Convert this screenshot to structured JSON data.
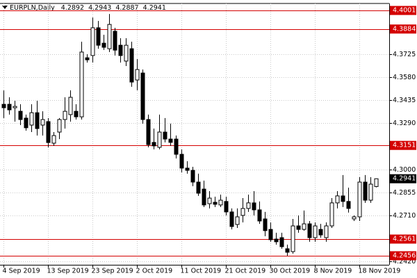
{
  "chart_data": {
    "type": "candlestick",
    "title": "EURPLN,Daily",
    "categories": [
      "4 Sep 2019",
      null,
      null,
      null,
      null,
      null,
      null,
      null,
      "13 Sep 2019",
      null,
      null,
      null,
      null,
      null,
      null,
      null,
      "23 Sep 2019",
      null,
      null,
      null,
      null,
      null,
      null,
      null,
      "2 Oct 2019",
      null,
      null,
      null,
      null,
      null,
      null,
      null,
      "11 Oct 2019",
      null,
      null,
      null,
      null,
      null,
      null,
      null,
      "21 Oct 2019",
      null,
      null,
      null,
      null,
      null,
      null,
      null,
      "30 Oct 2019",
      null,
      null,
      null,
      null,
      null,
      null,
      null,
      "8 Nov 2019",
      null,
      null,
      null,
      null,
      null,
      null,
      null,
      "18 Nov 2019",
      null,
      null,
      null
    ],
    "open": [
      4.341,
      4.341,
      4.3388,
      4.3366,
      4.3323,
      4.3279,
      4.3357,
      4.3279,
      4.3301,
      4.3165,
      4.3235,
      4.3314,
      4.3345,
      4.3366,
      4.3331,
      4.3703,
      4.3717,
      4.3892,
      4.3795,
      4.376,
      4.387,
      4.3782,
      4.3682,
      4.376,
      4.3563,
      4.3607,
      4.3314,
      4.317,
      4.3139,
      4.3235,
      4.3191,
      4.3191,
      4.3095,
      4.3008,
      4.2994,
      4.292,
      4.2876,
      4.2784,
      4.2793,
      4.2776,
      4.2798,
      4.2732,
      4.2653,
      4.271,
      4.2754,
      4.2789,
      4.2745,
      4.2688,
      4.2622,
      4.2561,
      4.257,
      4.25,
      4.2482,
      4.2644,
      4.2622,
      4.2657,
      4.257,
      4.2622,
      4.257,
      4.2644,
      4.2789,
      4.2833,
      4.2798,
      4.2688,
      4.2701,
      4.292,
      4.2806,
      4.2892
    ],
    "high": [
      4.3498,
      4.3454,
      4.3432,
      4.341,
      4.3345,
      4.341,
      4.3432,
      4.3366,
      4.3323,
      4.3235,
      4.3323,
      4.3454,
      4.3498,
      4.341,
      4.3804,
      4.3725,
      4.3957,
      4.3935,
      4.3848,
      4.3979,
      4.3892,
      4.3826,
      4.3826,
      4.3804,
      4.3695,
      4.3629,
      4.3345,
      4.3257,
      4.3345,
      4.3323,
      4.3288,
      4.3213,
      4.3126,
      4.3051,
      4.3016,
      4.2973,
      4.2929,
      4.2863,
      4.2828,
      4.2841,
      4.2828,
      4.2754,
      4.2754,
      4.2819,
      4.2841,
      4.2863,
      4.2798,
      4.2732,
      4.2666,
      4.2601,
      4.2601,
      4.2526,
      4.2688,
      4.271,
      4.2741,
      4.2675,
      4.2666,
      4.2657,
      4.2666,
      4.2819,
      4.2863,
      4.2964,
      4.2885,
      4.271,
      4.2951,
      4.2964,
      4.2951,
      4.2943
    ],
    "low": [
      4.3323,
      4.3345,
      4.3301,
      4.3279,
      4.3244,
      4.3235,
      4.3213,
      4.3213,
      4.3139,
      4.3148,
      4.3191,
      4.3257,
      4.3301,
      4.3314,
      4.3314,
      4.3673,
      4.3673,
      4.376,
      4.3752,
      4.3739,
      4.3717,
      4.3673,
      4.3651,
      4.352,
      4.3498,
      4.3288,
      4.3139,
      4.3126,
      4.3126,
      4.317,
      4.3148,
      4.3069,
      4.2981,
      4.2973,
      4.2894,
      4.2833,
      4.2763,
      4.2754,
      4.2763,
      4.2763,
      4.271,
      4.2622,
      4.2631,
      4.2666,
      4.2732,
      4.271,
      4.2657,
      4.2579,
      4.2544,
      4.2526,
      4.25,
      4.2456,
      4.2469,
      4.2601,
      4.2614,
      4.2544,
      4.2544,
      4.257,
      4.2544,
      4.2631,
      4.2754,
      4.2763,
      4.2728,
      4.2675,
      4.2675,
      4.2789,
      4.2789,
      4.2887
    ],
    "close": [
      4.3388,
      4.3375,
      4.3397,
      4.3314,
      4.3262,
      4.3357,
      4.3257,
      4.3314,
      4.3169,
      4.3213,
      4.3314,
      4.3366,
      4.3454,
      4.3331,
      4.3739,
      4.369,
      4.3892,
      4.3782,
      4.3769,
      4.3913,
      4.3751,
      4.3717,
      4.3782,
      4.355,
      4.3629,
      4.3314,
      4.3156,
      4.3148,
      4.3235,
      4.3191,
      4.317,
      4.3095,
      4.3008,
      4.2994,
      4.292,
      4.285,
      4.2776,
      4.2819,
      4.278,
      4.2806,
      4.2732,
      4.264,
      4.2701,
      4.2754,
      4.2789,
      4.2745,
      4.2675,
      4.2614,
      4.2557,
      4.2544,
      4.2513,
      4.2478,
      4.2644,
      4.2622,
      4.2657,
      4.257,
      4.2644,
      4.2587,
      4.2644,
      4.2789,
      4.2833,
      4.2798,
      4.2754,
      4.2701,
      4.292,
      4.2806,
      4.2907,
      4.2941
    ],
    "up_color": "#ffffff",
    "down_color": "#000000",
    "line_color": "#000000",
    "ylim": [
      4.2399,
      4.4045
    ],
    "yticks": [
      4.3725,
      {
        "value": 4.358,
        "label": "4.3580"
      },
      4.3435,
      {
        "value": 4.329,
        "label": "4.3290"
      },
      {
        "value": 4.3,
        "label": "4.3000"
      },
      4.2855,
      {
        "value": 4.271,
        "label": "4.2710"
      },
      {
        "value": 4.242,
        "label": "4.2420"
      }
    ],
    "hlines": [
      4.4001,
      4.3884,
      4.3151,
      4.2561,
      4.2456
    ],
    "hline_color": "#d40000",
    "last_price": 4.2941,
    "grid": true
  }
}
